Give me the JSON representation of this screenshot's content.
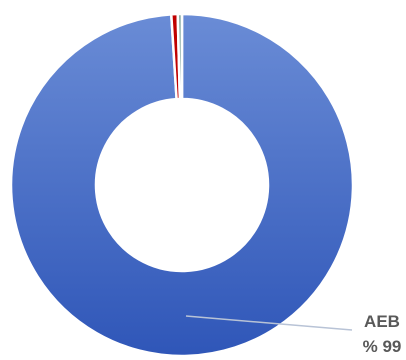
{
  "chart_data": {
    "type": "pie",
    "subtype": "donut",
    "title": "",
    "slices": [
      {
        "label": "AEB",
        "value": 99,
        "display": "% 99",
        "color": "#3b64c4"
      },
      {
        "label": "",
        "value": 0.6,
        "display": "",
        "color": "#c00000"
      },
      {
        "label": "",
        "value": 0.4,
        "display": "",
        "color": "#8fb0a8"
      }
    ],
    "start_angle_deg": 0,
    "direction": "clockwise",
    "legend": "none"
  }
}
